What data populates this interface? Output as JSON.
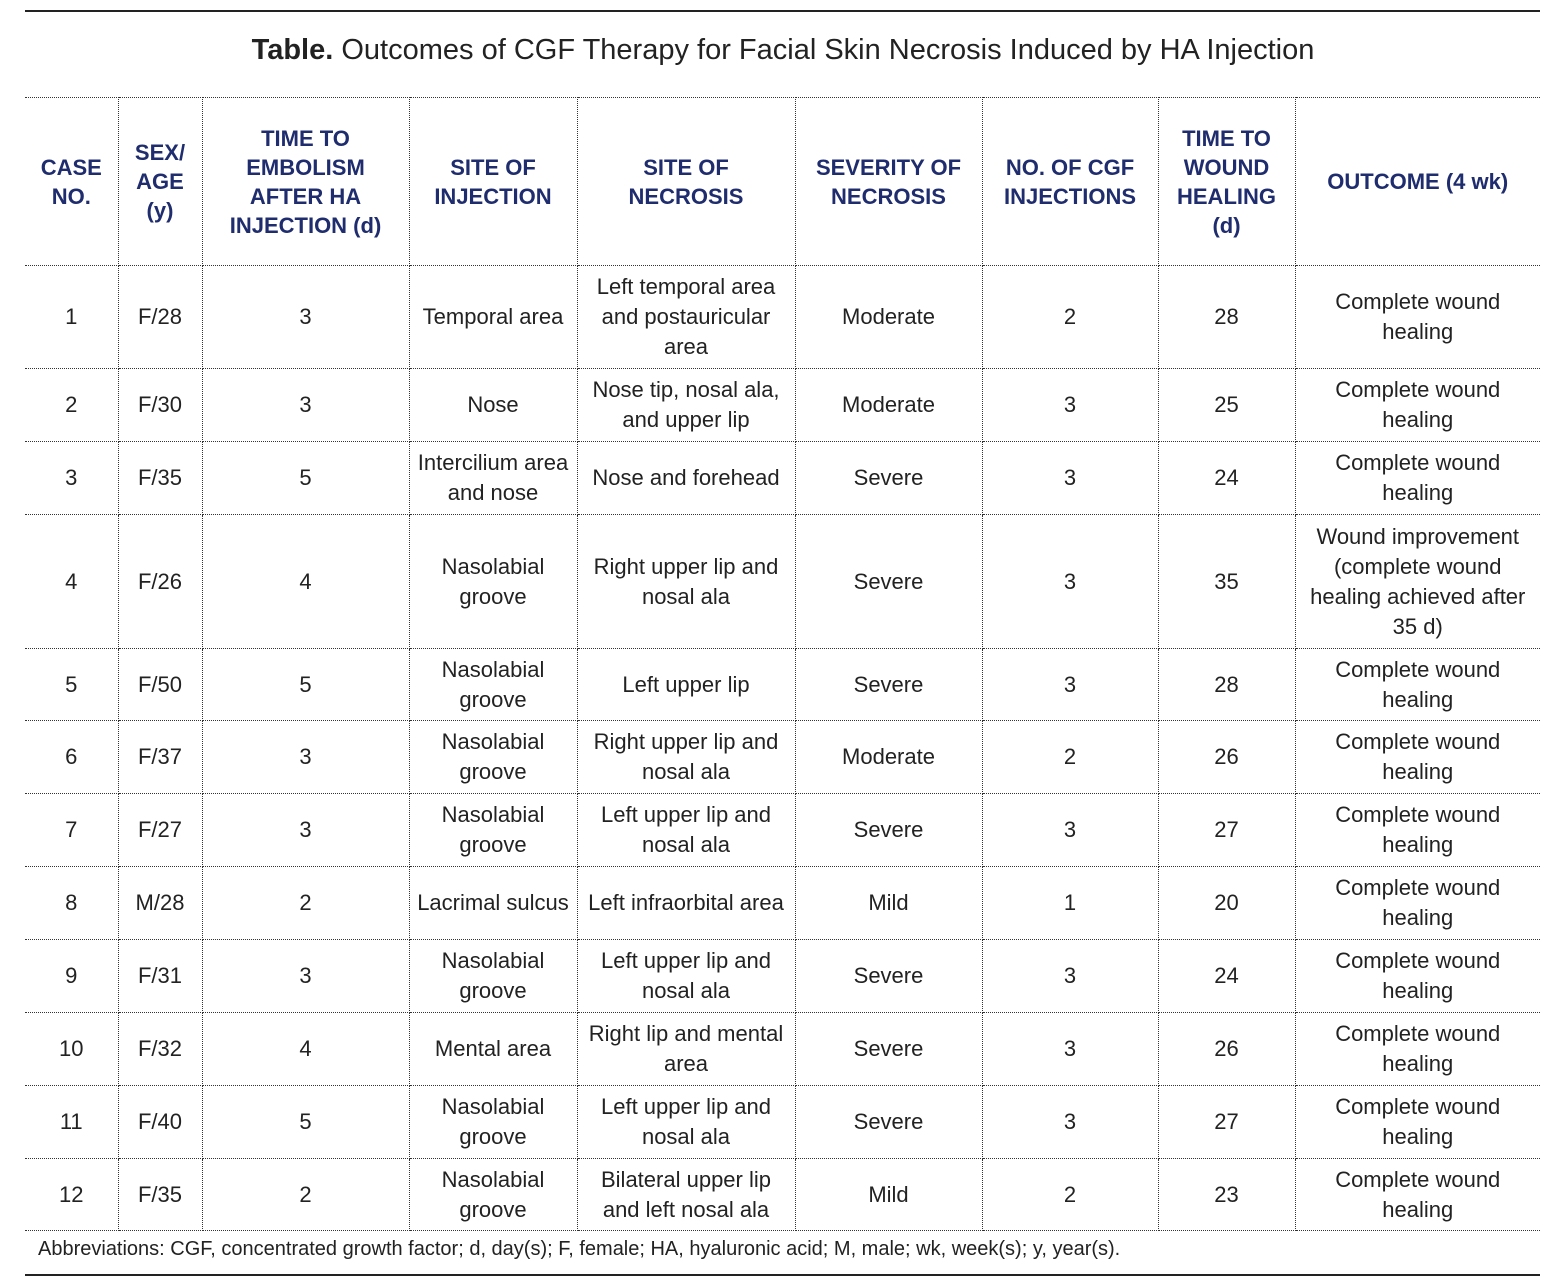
{
  "title": {
    "label": "Table.",
    "text": "Outcomes of CGF Therapy for Facial Skin Necrosis Induced by HA Injection"
  },
  "table": {
    "columns": [
      "CASE NO.",
      "SEX/ AGE (y)",
      "TIME TO EMBOLISM AFTER HA INJECTION (d)",
      "SITE OF INJECTION",
      "SITE OF NECROSIS",
      "SEVERITY OF NECROSIS",
      "NO. OF CGF INJECTIONS",
      "TIME TO WOUND HEALING (d)",
      "OUTCOME (4 wk)"
    ],
    "rows": [
      [
        1,
        "F/28",
        3,
        "Temporal area",
        "Left temporal area and postauricular area",
        "Moderate",
        2,
        28,
        "Complete wound healing"
      ],
      [
        2,
        "F/30",
        3,
        "Nose",
        "Nose tip, nosal ala, and upper lip",
        "Moderate",
        3,
        25,
        "Complete wound healing"
      ],
      [
        3,
        "F/35",
        5,
        "Intercilium area and nose",
        "Nose and forehead",
        "Severe",
        3,
        24,
        "Complete wound healing"
      ],
      [
        4,
        "F/26",
        4,
        "Nasolabial groove",
        "Right upper lip and nosal ala",
        "Severe",
        3,
        35,
        "Wound improvement (complete wound healing achieved after 35 d)"
      ],
      [
        5,
        "F/50",
        5,
        "Nasolabial groove",
        "Left upper lip",
        "Severe",
        3,
        28,
        "Complete wound healing"
      ],
      [
        6,
        "F/37",
        3,
        "Nasolabial groove",
        "Right upper lip and nosal ala",
        "Moderate",
        2,
        26,
        "Complete wound healing"
      ],
      [
        7,
        "F/27",
        3,
        "Nasolabial groove",
        "Left upper lip and nosal ala",
        "Severe",
        3,
        27,
        "Complete wound healing"
      ],
      [
        8,
        "M/28",
        2,
        "Lacrimal sulcus",
        "Left infraorbital area",
        "Mild",
        1,
        20,
        "Complete wound healing"
      ],
      [
        9,
        "F/31",
        3,
        "Nasolabial groove",
        "Left upper lip and nosal ala",
        "Severe",
        3,
        24,
        "Complete wound healing"
      ],
      [
        10,
        "F/32",
        4,
        "Mental area",
        "Right lip and mental area",
        "Severe",
        3,
        26,
        "Complete wound healing"
      ],
      [
        11,
        "F/40",
        5,
        "Nasolabial groove",
        "Left upper lip and nosal ala",
        "Severe",
        3,
        27,
        "Complete wound healing"
      ],
      [
        12,
        "F/35",
        2,
        "Nasolabial groove",
        "Bilateral upper lip and left nosal ala",
        "Mild",
        2,
        23,
        "Complete wound healing"
      ]
    ]
  },
  "footnote": "Abbreviations: CGF, concentrated growth factor; d, day(s); F, female; HA, hyaluronic acid; M, male; wk, week(s); y, year(s)."
}
